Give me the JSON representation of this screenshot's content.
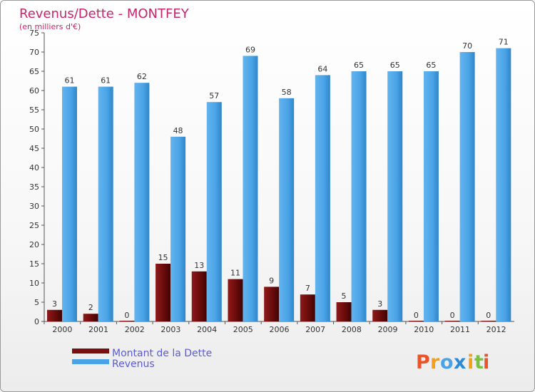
{
  "chart_data": {
    "type": "bar",
    "title": "Revenus/Dette - MONTFEY",
    "subtitle": "(en milliers d'€)",
    "categories": [
      "2000",
      "2001",
      "2002",
      "2003",
      "2004",
      "2005",
      "2006",
      "2007",
      "2008",
      "2009",
      "2010",
      "2011",
      "2012"
    ],
    "series": [
      {
        "name": "Montant de la Dette",
        "color": "#7a0e0e",
        "values": [
          3,
          2,
          0,
          15,
          13,
          11,
          9,
          7,
          5,
          3,
          0,
          0,
          0
        ]
      },
      {
        "name": "Revenus",
        "color": "#4aa3e6",
        "values": [
          61,
          61,
          62,
          48,
          57,
          69,
          58,
          64,
          65,
          65,
          65,
          70,
          71
        ]
      }
    ],
    "ylim": [
      0,
      75
    ],
    "yticks": [
      0,
      5,
      10,
      15,
      20,
      25,
      30,
      35,
      40,
      45,
      50,
      55,
      60,
      65,
      70,
      75
    ],
    "grid": false,
    "legend_position": "bottom-left"
  },
  "brand": {
    "letters": [
      "P",
      "r",
      "o",
      "x",
      "i",
      "t",
      "i"
    ],
    "colors": [
      "#e9542b",
      "#f6a01a",
      "#4aa3e6",
      "#2c8bd6",
      "#f6a01a",
      "#7ac143",
      "#e9542b"
    ]
  }
}
